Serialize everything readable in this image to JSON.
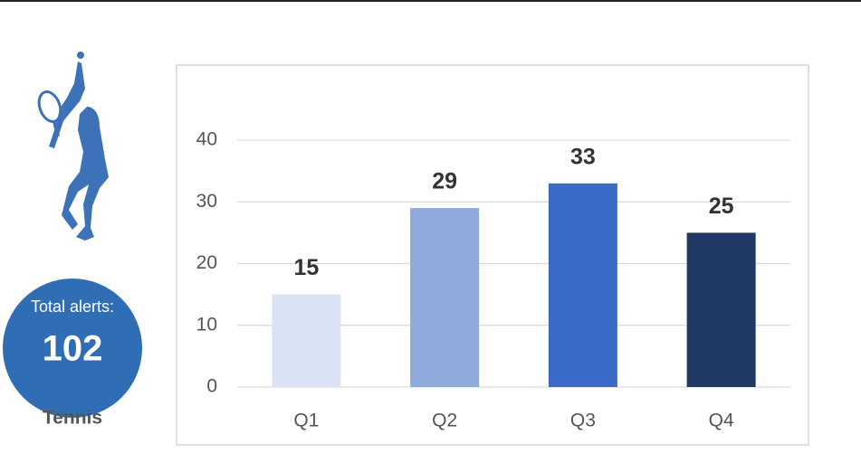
{
  "sidebar": {
    "total_label": "Total alerts:",
    "total": 102,
    "sport": "Tennis"
  },
  "chart_data": {
    "type": "bar",
    "categories": [
      "Q1",
      "Q2",
      "Q3",
      "Q4"
    ],
    "values": [
      15,
      29,
      33,
      25
    ],
    "colors": [
      "#dae3f3",
      "#8faadc",
      "#3a6bc8",
      "#203864"
    ],
    "ylim": [
      0,
      40
    ],
    "yticks": [
      0,
      10,
      20,
      30,
      40
    ],
    "grid": true
  }
}
